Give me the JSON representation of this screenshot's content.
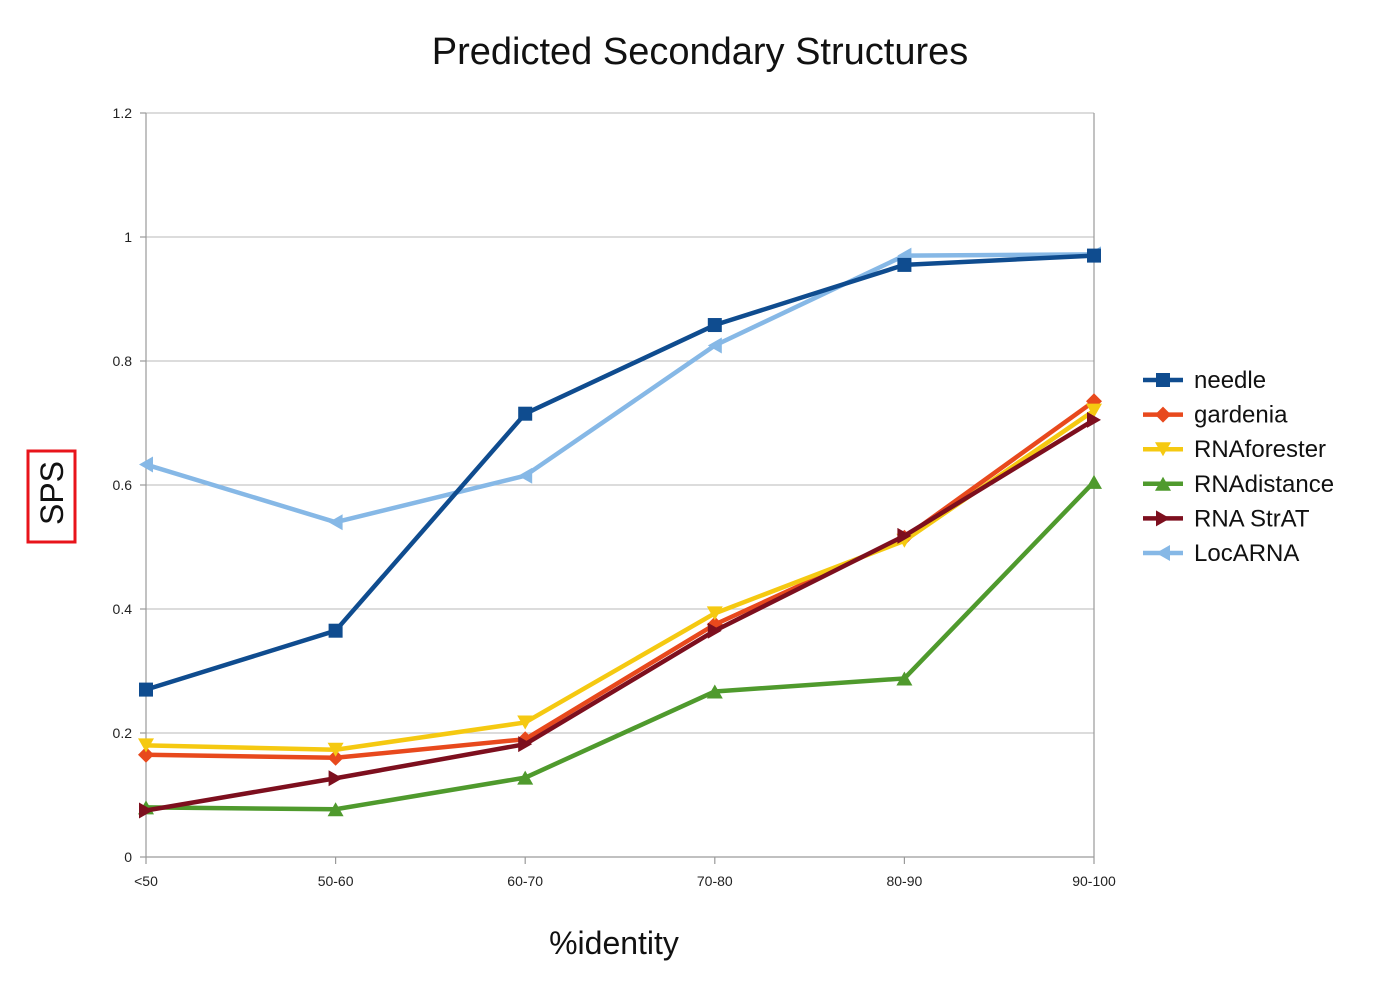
{
  "chart_data": {
    "type": "line",
    "title": "Predicted Secondary Structures",
    "xlabel": "%identity",
    "ylabel": "SPS",
    "categories": [
      "<50",
      "50-60",
      "60-70",
      "70-80",
      "80-90",
      "90-100"
    ],
    "ylim": [
      0,
      1.2
    ],
    "yticks": [
      "0",
      "0.2",
      "0.4",
      "0.6",
      "0.8",
      "1",
      "1.2"
    ],
    "grid": true,
    "legend_position": "right",
    "series": [
      {
        "name": "needle",
        "color": "#0f4c8f",
        "marker": "square",
        "values": [
          0.27,
          0.365,
          0.715,
          0.858,
          0.955,
          0.97
        ]
      },
      {
        "name": "gardenia",
        "color": "#e8491d",
        "marker": "diamond",
        "values": [
          0.165,
          0.16,
          0.19,
          0.375,
          0.515,
          0.735
        ]
      },
      {
        "name": "RNAforester",
        "color": "#f5c911",
        "marker": "triangle-down",
        "values": [
          0.18,
          0.173,
          0.217,
          0.393,
          0.51,
          0.72
        ]
      },
      {
        "name": "RNAdistance",
        "color": "#4f9a2d",
        "marker": "triangle-up",
        "values": [
          0.08,
          0.077,
          0.128,
          0.267,
          0.288,
          0.605
        ]
      },
      {
        "name": "RNA StrAT",
        "color": "#7d0f1e",
        "marker": "triangle-right",
        "values": [
          0.075,
          0.127,
          0.182,
          0.365,
          0.518,
          0.705
        ]
      },
      {
        "name": "LocARNA",
        "color": "#86b8e6",
        "marker": "triangle-left",
        "values": [
          0.633,
          0.54,
          0.615,
          0.825,
          0.97,
          0.972
        ]
      }
    ]
  },
  "highlight": {
    "target": "ylabel",
    "color": "#e8141b"
  }
}
